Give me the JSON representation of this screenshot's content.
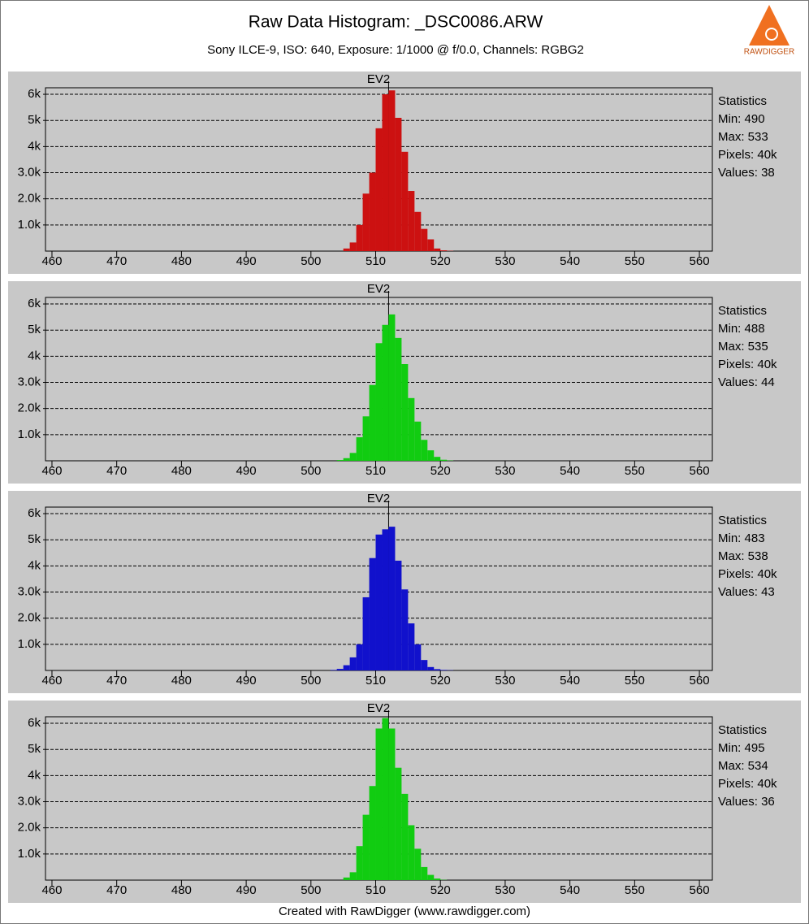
{
  "header": {
    "title": "Raw Data Histogram: _DSC0086.ARW",
    "subtitle": "Sony ILCE-9, ISO: 640, Exposure: 1/1000 @ f/0.0, Channels: RGBG2",
    "logo": "RAWDIGGER"
  },
  "footer": "Created with RawDigger (www.rawdigger.com)",
  "chart_data": [
    {
      "type": "histogram",
      "title": "EV2",
      "color": "#cc1111",
      "marker": 512,
      "bins": [
        505,
        506,
        507,
        508,
        509,
        510,
        511,
        512,
        513,
        514,
        515,
        516,
        517,
        518,
        519,
        520,
        521,
        522
      ],
      "values": [
        100,
        330,
        1000,
        2200,
        3000,
        4700,
        6000,
        6150,
        5100,
        3800,
        2300,
        1500,
        850,
        450,
        100,
        30,
        10
      ],
      "xlim": [
        459,
        562
      ],
      "xticks": [
        460,
        470,
        480,
        490,
        500,
        510,
        520,
        530,
        540,
        550,
        560
      ],
      "ylim": [
        0,
        6250
      ],
      "yticks": [
        {
          "value": 1000,
          "label": "1.0k"
        },
        {
          "value": 2000,
          "label": "2.0k"
        },
        {
          "value": 3000,
          "label": "3.0k"
        },
        {
          "value": 4000,
          "label": "4k"
        },
        {
          "value": 5000,
          "label": "5k"
        },
        {
          "value": 6000,
          "label": "6k"
        }
      ],
      "grid": true,
      "stats": [
        "Statistics",
        "Min: 490",
        "Max: 533",
        "Pixels: 40k",
        "Values: 38"
      ]
    },
    {
      "type": "histogram",
      "title": "EV2",
      "color": "#11cc11",
      "marker": 512,
      "bins": [
        504,
        505,
        506,
        507,
        508,
        509,
        510,
        511,
        512,
        513,
        514,
        515,
        516,
        517,
        518,
        519,
        520,
        521,
        522
      ],
      "values": [
        30,
        100,
        300,
        900,
        1700,
        2900,
        4500,
        5200,
        5600,
        4700,
        3700,
        2400,
        1500,
        800,
        400,
        150,
        40,
        10
      ],
      "xlim": [
        459,
        562
      ],
      "xticks": [
        460,
        470,
        480,
        490,
        500,
        510,
        520,
        530,
        540,
        550,
        560
      ],
      "ylim": [
        0,
        6250
      ],
      "yticks": [
        {
          "value": 1000,
          "label": "1.0k"
        },
        {
          "value": 2000,
          "label": "2.0k"
        },
        {
          "value": 3000,
          "label": "3.0k"
        },
        {
          "value": 4000,
          "label": "4k"
        },
        {
          "value": 5000,
          "label": "5k"
        },
        {
          "value": 6000,
          "label": "6k"
        }
      ],
      "grid": true,
      "stats": [
        "Statistics",
        "Min: 488",
        "Max: 535",
        "Pixels: 40k",
        "Values: 44"
      ]
    },
    {
      "type": "histogram",
      "title": "EV2",
      "color": "#1111cc",
      "marker": 512,
      "bins": [
        503,
        504,
        505,
        506,
        507,
        508,
        509,
        510,
        511,
        512,
        513,
        514,
        515,
        516,
        517,
        518,
        519,
        520,
        521,
        522
      ],
      "values": [
        20,
        60,
        200,
        500,
        1000,
        2800,
        4300,
        5200,
        5400,
        5500,
        4200,
        3100,
        1800,
        1000,
        400,
        130,
        50,
        20,
        10
      ],
      "xlim": [
        459,
        562
      ],
      "xticks": [
        460,
        470,
        480,
        490,
        500,
        510,
        520,
        530,
        540,
        550,
        560
      ],
      "ylim": [
        0,
        6250
      ],
      "yticks": [
        {
          "value": 1000,
          "label": "1.0k"
        },
        {
          "value": 2000,
          "label": "2.0k"
        },
        {
          "value": 3000,
          "label": "3.0k"
        },
        {
          "value": 4000,
          "label": "4k"
        },
        {
          "value": 5000,
          "label": "5k"
        },
        {
          "value": 6000,
          "label": "6k"
        }
      ],
      "grid": true,
      "stats": [
        "Statistics",
        "Min: 483",
        "Max: 538",
        "Pixels: 40k",
        "Values: 43"
      ]
    },
    {
      "type": "histogram",
      "title": "EV2",
      "color": "#11cc11",
      "marker": 512,
      "bins": [
        505,
        506,
        507,
        508,
        509,
        510,
        511,
        512,
        513,
        514,
        515,
        516,
        517,
        518,
        519,
        520,
        521
      ],
      "values": [
        100,
        300,
        1300,
        2500,
        3600,
        5800,
        6200,
        5800,
        4300,
        3300,
        2100,
        1200,
        500,
        200,
        60,
        10
      ],
      "xlim": [
        459,
        562
      ],
      "xticks": [
        460,
        470,
        480,
        490,
        500,
        510,
        520,
        530,
        540,
        550,
        560
      ],
      "ylim": [
        0,
        6250
      ],
      "yticks": [
        {
          "value": 1000,
          "label": "1.0k"
        },
        {
          "value": 2000,
          "label": "2.0k"
        },
        {
          "value": 3000,
          "label": "3.0k"
        },
        {
          "value": 4000,
          "label": "4k"
        },
        {
          "value": 5000,
          "label": "5k"
        },
        {
          "value": 6000,
          "label": "6k"
        }
      ],
      "grid": true,
      "stats": [
        "Statistics",
        "Min: 495",
        "Max: 534",
        "Pixels: 40k",
        "Values: 36"
      ]
    }
  ]
}
